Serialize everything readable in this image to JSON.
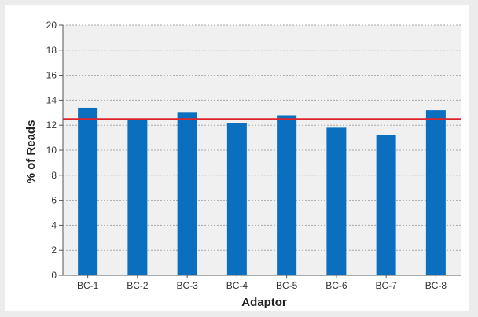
{
  "chart_data": {
    "type": "bar",
    "categories": [
      "BC-1",
      "BC-2",
      "BC-3",
      "BC-4",
      "BC-5",
      "BC-6",
      "BC-7",
      "BC-8"
    ],
    "series": [
      {
        "values": [
          13.4,
          12.4,
          13.0,
          12.2,
          12.8,
          11.8,
          11.2,
          13.2
        ]
      }
    ],
    "reference_line": {
      "value": 12.5,
      "color": "#e0242b"
    },
    "xlabel": "Adaptor",
    "ylabel": "% of Reads",
    "ylim": [
      0,
      20
    ],
    "yticks": [
      0,
      2,
      4,
      6,
      8,
      10,
      12,
      14,
      16,
      18,
      20
    ],
    "grid": true,
    "legend": "none",
    "colors": {
      "bar": "#0b6fc0",
      "plot_background": "#f0f0f0",
      "gridline": "#a8a8a8",
      "axis": "#555555"
    }
  }
}
